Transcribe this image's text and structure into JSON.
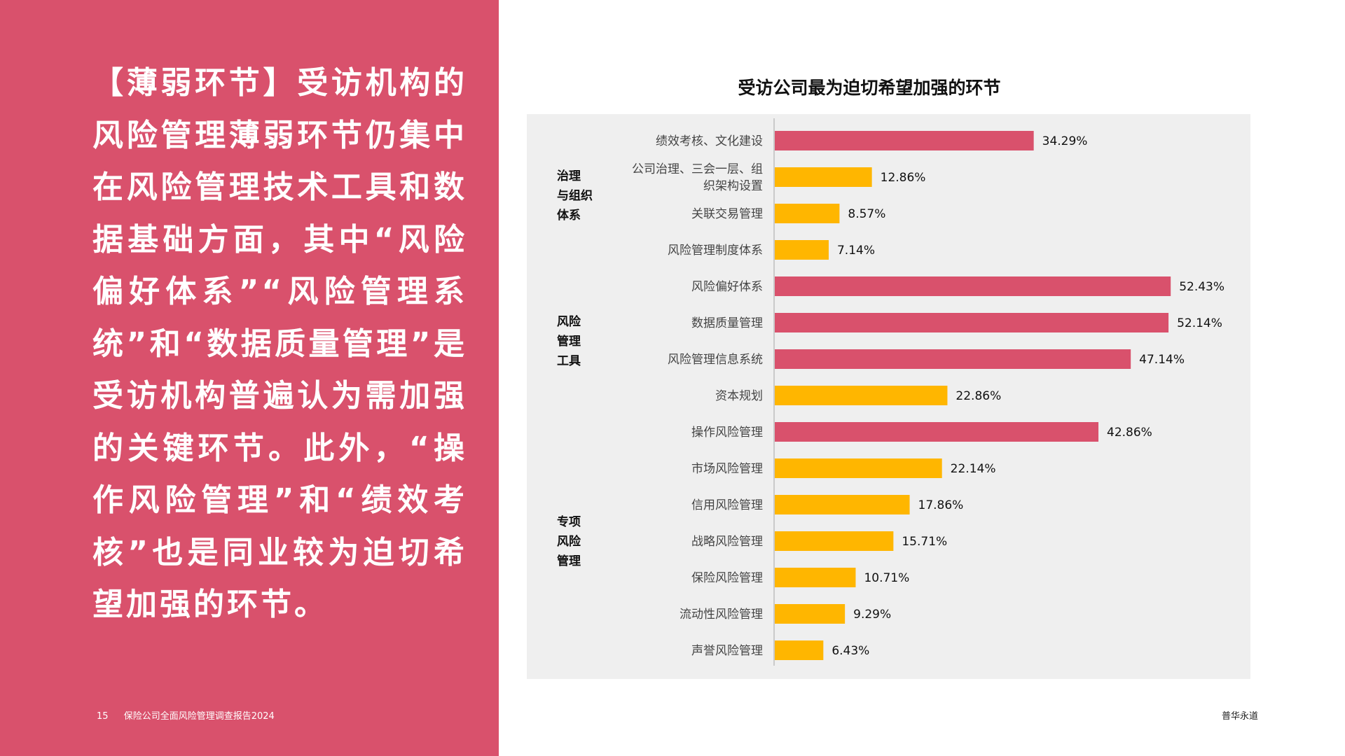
{
  "left_panel": {
    "text": "【薄弱环节】受访机构的风险管理薄弱环节仍集中在风险管理技术工具和数据基础方面，其中“风险偏好体系”“风险管理系统”和“数据质量管理”是受访机构普遍认为需加强的关键环节。此外，“操作风险管理”和“绩效考核”也是同业较为迫切希望加强的环节。"
  },
  "footer": {
    "page_number": "15",
    "report_title": "保险公司全面风险管理调查报告2024",
    "brand": "普华永道"
  },
  "colors": {
    "panel_bg": "#d9516c",
    "bar_highlight": "#d9516c",
    "bar_normal": "#ffb600",
    "group_bg": "#efefef"
  },
  "chart_data": {
    "type": "bar",
    "orientation": "horizontal",
    "title": "受访公司最为迫切希望加强的环节",
    "xlim": [
      0,
      60
    ],
    "grid": false,
    "groups": [
      {
        "name": "治理与组织体系",
        "name_lines": [
          "治理",
          "与组织",
          "体系"
        ],
        "items": [
          {
            "label": "绩效考核、文化建设",
            "label_lines": [
              "绩效考核、文化建设"
            ],
            "value": 34.29,
            "display": "34.29%",
            "highlight": true
          },
          {
            "label": "公司治理、三会一层、组织架构设置",
            "label_lines": [
              "公司治理、三会一层、组",
              "织架构设置"
            ],
            "value": 12.86,
            "display": "12.86%",
            "highlight": false
          },
          {
            "label": "关联交易管理",
            "label_lines": [
              "关联交易管理"
            ],
            "value": 8.57,
            "display": "8.57%",
            "highlight": false
          },
          {
            "label": "风险管理制度体系",
            "label_lines": [
              "风险管理制度体系"
            ],
            "value": 7.14,
            "display": "7.14%",
            "highlight": false
          }
        ]
      },
      {
        "name": "风险管理工具",
        "name_lines": [
          "风险",
          "管理",
          "工具"
        ],
        "items": [
          {
            "label": "风险偏好体系",
            "label_lines": [
              "风险偏好体系"
            ],
            "value": 52.43,
            "display": "52.43%",
            "highlight": true
          },
          {
            "label": "数据质量管理",
            "label_lines": [
              "数据质量管理"
            ],
            "value": 52.14,
            "display": "52.14%",
            "highlight": true
          },
          {
            "label": "风险管理信息系统",
            "label_lines": [
              "风险管理信息系统"
            ],
            "value": 47.14,
            "display": "47.14%",
            "highlight": true
          },
          {
            "label": "资本规划",
            "label_lines": [
              "资本规划"
            ],
            "value": 22.86,
            "display": "22.86%",
            "highlight": false
          }
        ]
      },
      {
        "name": "专项风险管理",
        "name_lines": [
          "专项",
          "风险",
          "管理"
        ],
        "items": [
          {
            "label": "操作风险管理",
            "label_lines": [
              "操作风险管理"
            ],
            "value": 42.86,
            "display": "42.86%",
            "highlight": true
          },
          {
            "label": "市场风险管理",
            "label_lines": [
              "市场风险管理"
            ],
            "value": 22.14,
            "display": "22.14%",
            "highlight": false
          },
          {
            "label": "信用风险管理",
            "label_lines": [
              "信用风险管理"
            ],
            "value": 17.86,
            "display": "17.86%",
            "highlight": false
          },
          {
            "label": "战略风险管理",
            "label_lines": [
              "战略风险管理"
            ],
            "value": 15.71,
            "display": "15.71%",
            "highlight": false
          },
          {
            "label": "保险风险管理",
            "label_lines": [
              "保险风险管理"
            ],
            "value": 10.71,
            "display": "10.71%",
            "highlight": false
          },
          {
            "label": "流动性风险管理",
            "label_lines": [
              "流动性风险管理"
            ],
            "value": 9.29,
            "display": "9.29%",
            "highlight": false
          },
          {
            "label": "声誉风险管理",
            "label_lines": [
              "声誉风险管理"
            ],
            "value": 6.43,
            "display": "6.43%",
            "highlight": false
          }
        ]
      }
    ]
  }
}
